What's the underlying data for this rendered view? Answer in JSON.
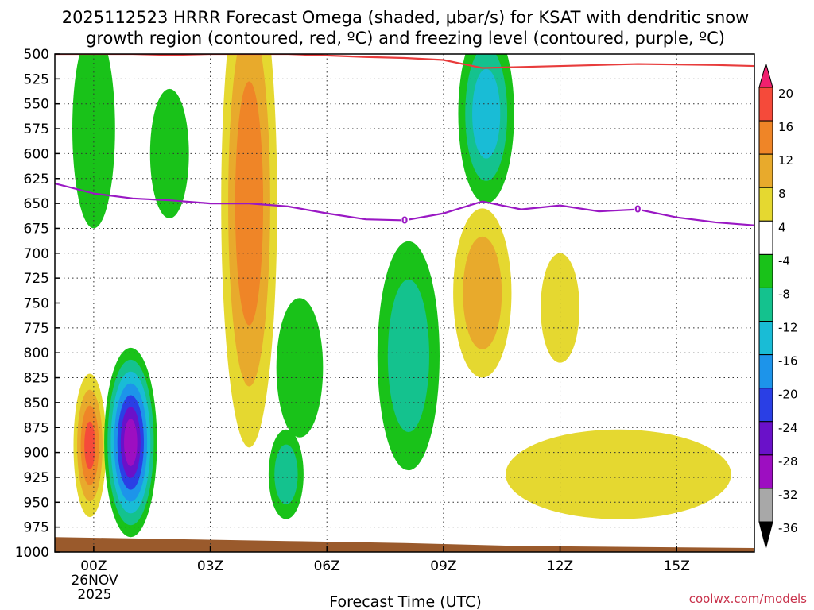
{
  "chart_data": {
    "type": "heatmap",
    "title": "2025112523 HRRR Forecast Omega (shaded, μbar/s) for KSAT with dendritic snow",
    "subtitle": "growth region (contoured, red, ºC) and freezing level (contoured, purple, ºC)",
    "xlabel": "Forecast Time (UTC)",
    "ylabel": "",
    "credit": "coolwx.com/models",
    "date_label": [
      "26NOV",
      "2025"
    ],
    "x_ticks": [
      "00Z",
      "03Z",
      "06Z",
      "09Z",
      "12Z",
      "15Z"
    ],
    "x_tick_hours": [
      0,
      3,
      6,
      9,
      12,
      15
    ],
    "xlim_hours": [
      -1,
      17
    ],
    "y_ticks": [
      500,
      525,
      550,
      575,
      600,
      625,
      650,
      675,
      700,
      725,
      750,
      775,
      800,
      825,
      850,
      875,
      900,
      925,
      950,
      975,
      1000
    ],
    "ylim_hPa": [
      500,
      1000
    ],
    "colorbar": {
      "labels": [
        "20",
        "16",
        "12",
        "8",
        "4",
        "-4",
        "-8",
        "-12",
        "-16",
        "-20",
        "-24",
        "-28",
        "-32",
        "-36"
      ],
      "colors": [
        "#f0206e",
        "#f54a3a",
        "#ef8527",
        "#e8aa2c",
        "#e5d830",
        "#ffffff",
        "#19c219",
        "#14c28e",
        "#19bcd6",
        "#1d94ea",
        "#2a3fe5",
        "#6a11c9",
        "#9d0ec1",
        "#a8a8a8",
        "#000000"
      ]
    },
    "freezing_level_label": "0",
    "freezing_level_hPa": [
      [
        -1,
        630
      ],
      [
        0,
        640
      ],
      [
        1,
        645
      ],
      [
        2,
        647
      ],
      [
        3,
        650
      ],
      [
        4,
        650
      ],
      [
        5,
        653
      ],
      [
        6,
        660
      ],
      [
        7,
        666
      ],
      [
        8,
        667
      ],
      [
        9,
        660
      ],
      [
        10,
        648
      ],
      [
        11,
        656
      ],
      [
        12,
        652
      ],
      [
        13,
        658
      ],
      [
        14,
        656
      ],
      [
        15,
        664
      ],
      [
        16,
        669
      ],
      [
        17,
        672
      ]
    ],
    "dendritic_top_hPa": [
      [
        -1,
        500
      ],
      [
        1,
        500
      ],
      [
        2,
        501
      ],
      [
        3,
        500
      ],
      [
        5,
        500
      ],
      [
        7,
        503
      ],
      [
        8,
        504
      ],
      [
        9,
        506
      ],
      [
        10,
        514
      ],
      [
        11,
        513
      ],
      [
        12,
        512
      ],
      [
        14,
        510
      ],
      [
        16,
        511
      ],
      [
        17,
        512
      ]
    ],
    "ground_hPa": [
      [
        -1,
        985
      ],
      [
        2,
        987
      ],
      [
        5,
        989
      ],
      [
        8,
        991
      ],
      [
        11,
        994
      ],
      [
        14,
        995
      ],
      [
        17,
        996
      ]
    ],
    "omega_regions": [
      {
        "center": [
          -0.1,
          893
        ],
        "rx": 0.42,
        "ry": 72,
        "value": 16
      },
      {
        "center": [
          0.95,
          890
        ],
        "rx": 0.68,
        "ry": 95,
        "value": -30
      },
      {
        "center": [
          4.0,
          650
        ],
        "rx": 0.72,
        "ry": 245,
        "value": 14
      },
      {
        "center": [
          0.0,
          575
        ],
        "rx": 0.55,
        "ry": 100,
        "value": -6
      },
      {
        "center": [
          1.95,
          600
        ],
        "rx": 0.5,
        "ry": 65,
        "value": -6
      },
      {
        "center": [
          5.3,
          815
        ],
        "rx": 0.6,
        "ry": 70,
        "value": -6
      },
      {
        "center": [
          4.95,
          922
        ],
        "rx": 0.45,
        "ry": 45,
        "value": -10
      },
      {
        "center": [
          10.1,
          560
        ],
        "rx": 0.72,
        "ry": 90,
        "value": -14
      },
      {
        "center": [
          8.1,
          803
        ],
        "rx": 0.8,
        "ry": 115,
        "value": -10
      },
      {
        "center": [
          10.0,
          740
        ],
        "rx": 0.75,
        "ry": 85,
        "value": 10
      },
      {
        "center": [
          12.0,
          755
        ],
        "rx": 0.5,
        "ry": 55,
        "value": 5
      },
      {
        "center": [
          13.5,
          922
        ],
        "rx": 2.9,
        "ry": 45,
        "value": 5
      }
    ]
  }
}
